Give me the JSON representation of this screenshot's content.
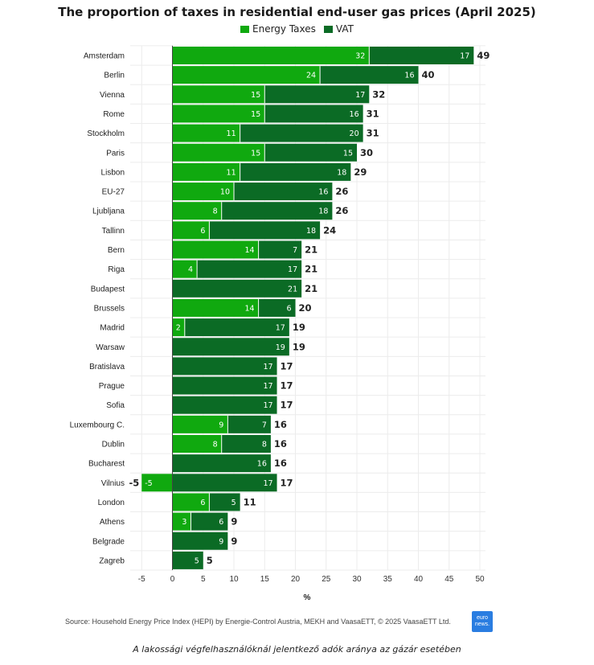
{
  "header": {
    "title": "The proportion of taxes in residential end-user gas prices (April 2025)"
  },
  "legend": {
    "items": [
      {
        "label": "Energy Taxes",
        "color": "#10a90f"
      },
      {
        "label": "VAT",
        "color": "#0b6b25"
      }
    ]
  },
  "footer": {
    "source": "Source: Household Energy Price Index (HEPI) by Energie-Control Austria, MEKH and VaasaETT, © 2025 VaasaETT Ltd.",
    "logo_line1": "euro",
    "logo_line2": "news.",
    "caption": "A lakossági végfelhasználóknál jelentkező adók aránya az gázár esetében"
  },
  "chart_data": {
    "type": "bar",
    "orientation": "horizontal",
    "stacked": true,
    "title": "The proportion of taxes in residential end-user gas prices (April 2025)",
    "xlabel": "%",
    "ylabel": "",
    "xlim": [
      -7,
      51
    ],
    "xticks": [
      -5,
      0,
      5,
      10,
      15,
      20,
      25,
      30,
      35,
      40,
      45,
      50
    ],
    "grid": true,
    "legend_position": "top-center",
    "categories": [
      "Amsterdam",
      "Berlin",
      "Vienna",
      "Rome",
      "Stockholm",
      "Paris",
      "Lisbon",
      "EU-27",
      "Ljubljana",
      "Tallinn",
      "Bern",
      "Riga",
      "Budapest",
      "Brussels",
      "Madrid",
      "Warsaw",
      "Bratislava",
      "Prague",
      "Sofia",
      "Luxembourg C.",
      "Dublin",
      "Bucharest",
      "Vilnius",
      "London",
      "Athens",
      "Belgrade",
      "Zagreb"
    ],
    "series": [
      {
        "name": "Energy Taxes",
        "color": "#10a90f",
        "values": [
          32,
          24,
          15,
          15,
          11,
          15,
          11,
          10,
          8,
          6,
          14,
          4,
          0,
          14,
          2,
          0,
          0,
          0,
          0,
          9,
          8,
          0,
          -5,
          6,
          3,
          0,
          0
        ]
      },
      {
        "name": "VAT",
        "color": "#0b6b25",
        "values": [
          17,
          16,
          17,
          16,
          20,
          15,
          18,
          16,
          18,
          18,
          7,
          17,
          21,
          6,
          17,
          19,
          17,
          17,
          17,
          7,
          8,
          16,
          17,
          5,
          6,
          9,
          5
        ]
      }
    ],
    "totals": [
      49,
      40,
      32,
      31,
      31,
      30,
      29,
      26,
      26,
      24,
      21,
      21,
      21,
      20,
      19,
      19,
      17,
      17,
      17,
      16,
      16,
      16,
      17,
      11,
      9,
      9,
      5
    ],
    "negative_total_labels": {
      "Vilnius": "-5"
    }
  }
}
